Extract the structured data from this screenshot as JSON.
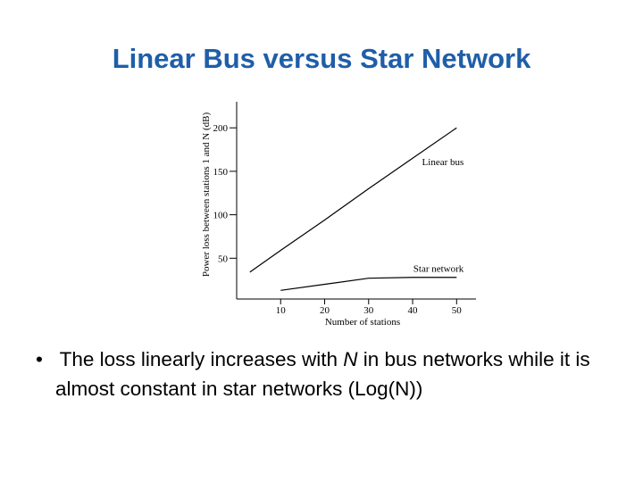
{
  "slide_title": "Linear Bus versus Star Network",
  "chart_data": {
    "type": "line",
    "x_label": "Number of stations",
    "y_label": "Power loss between stations 1 and N (dB)",
    "xlim": [
      0,
      54
    ],
    "ylim": [
      0,
      230
    ],
    "xticks": [
      10,
      20,
      30,
      40,
      50
    ],
    "yticks": [
      50,
      100,
      150,
      200
    ],
    "series": [
      {
        "name": "Linear bus",
        "color": "#000000",
        "x": [
          3,
          10,
          20,
          30,
          40,
          50
        ],
        "values": [
          34,
          59,
          94,
          130,
          165,
          200
        ]
      },
      {
        "name": "Star network",
        "color": "#000000",
        "x": [
          10,
          20,
          30,
          40,
          50
        ],
        "values": [
          13,
          20,
          27,
          28,
          28
        ]
      }
    ]
  },
  "bullet": [
    "The loss linearly increases with ",
    "N",
    " in bus networks while it is almost constant in star networks (Log(N))"
  ]
}
